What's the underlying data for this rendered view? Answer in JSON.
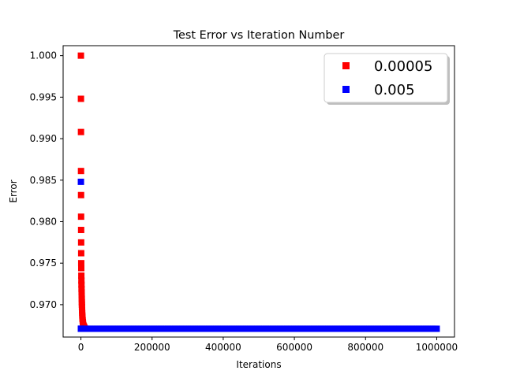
{
  "chart_data": {
    "type": "scatter",
    "title": "Test Error vs Iteration Number",
    "xlabel": "Iterations",
    "ylabel": "Error",
    "xlim": [
      -50000,
      1050000
    ],
    "ylim": [
      0.9661,
      1.0012
    ],
    "x_ticks": [
      0,
      200000,
      400000,
      600000,
      800000,
      1000000
    ],
    "x_tick_labels": [
      "0",
      "200000",
      "400000",
      "600000",
      "800000",
      "1000000"
    ],
    "y_ticks": [
      0.97,
      0.975,
      0.98,
      0.985,
      0.99,
      0.995,
      1.0
    ],
    "y_tick_labels": [
      "0.970",
      "0.975",
      "0.980",
      "0.985",
      "0.990",
      "0.995",
      "1.000"
    ],
    "grid": false,
    "legend_position": "top-right",
    "marker": "square",
    "series": [
      {
        "name": "0.00005",
        "color": "#ff0000",
        "points": [
          [
            0,
            1.0
          ],
          [
            100,
            0.9948
          ],
          [
            200,
            0.9908
          ],
          [
            300,
            0.9861
          ],
          [
            400,
            0.9832
          ],
          [
            500,
            0.9806
          ],
          [
            600,
            0.979
          ],
          [
            700,
            0.9775
          ],
          [
            800,
            0.9762
          ],
          [
            900,
            0.975
          ],
          [
            1000,
            0.9744
          ],
          [
            1200,
            0.9735
          ],
          [
            1400,
            0.9729
          ],
          [
            1600,
            0.9724
          ],
          [
            1800,
            0.9719
          ],
          [
            2000,
            0.9715
          ],
          [
            2200,
            0.9711
          ],
          [
            2400,
            0.9707
          ],
          [
            2600,
            0.9703
          ],
          [
            2800,
            0.97
          ],
          [
            3000,
            0.9697
          ],
          [
            3300,
            0.9693
          ],
          [
            3600,
            0.969
          ],
          [
            3900,
            0.9687
          ],
          [
            4200,
            0.9685
          ],
          [
            4500,
            0.9683
          ],
          [
            5000,
            0.9681
          ],
          [
            5500,
            0.9679
          ],
          [
            6000,
            0.9677
          ],
          [
            7000,
            0.9675
          ],
          [
            8000,
            0.9674
          ],
          [
            9000,
            0.9673
          ],
          [
            10000,
            0.9672
          ],
          [
            12000,
            0.9671
          ],
          [
            14000,
            0.9671
          ]
        ]
      },
      {
        "name": "0.005",
        "color": "#0000ff",
        "points": [
          [
            0,
            0.9848
          ],
          [
            100,
            0.9671
          ],
          [
            250,
            0.9671
          ],
          [
            500,
            0.9671
          ],
          [
            1000,
            0.9671
          ]
        ],
        "plateau": {
          "x_start": 0,
          "x_end": 1000000,
          "step": 5000,
          "y": 0.9671
        }
      }
    ]
  }
}
